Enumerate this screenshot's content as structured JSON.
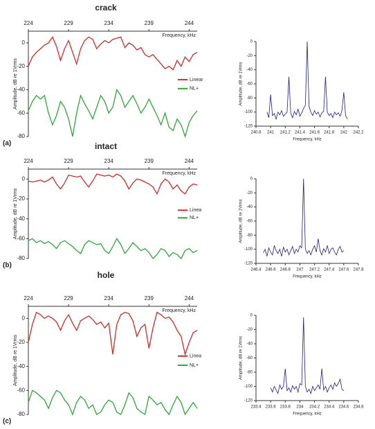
{
  "chart_data": [
    {
      "type": "line",
      "title": "crack",
      "panel": "(a)",
      "xlabel": "Frequency, kHz",
      "ylabel": "Amplitude, dB re 1Vrms",
      "xaxis": "top",
      "legend": "right",
      "x": [
        224,
        224.5,
        225,
        225.5,
        226,
        226.5,
        227,
        227.5,
        228,
        228.5,
        229,
        229.5,
        230,
        230.5,
        231,
        231.5,
        232,
        232.5,
        233,
        233.5,
        234,
        234.5,
        235,
        235.5,
        236,
        236.5,
        237,
        237.5,
        238,
        238.5,
        239,
        239.5,
        240,
        240.5,
        241,
        241.5,
        242,
        242.5,
        243,
        243.5,
        244,
        244.5,
        245
      ],
      "series": [
        {
          "name": "Linear",
          "color": "#d42a2a",
          "values": [
            -20,
            -12,
            -8,
            -5,
            -2,
            0,
            5,
            -3,
            -15,
            -5,
            2,
            -8,
            -18,
            -5,
            2,
            5,
            3,
            -5,
            -1,
            2,
            0,
            3,
            4,
            5,
            -4,
            0,
            -2,
            -6,
            -4,
            -10,
            -12,
            -10,
            -14,
            -18,
            -22,
            -20,
            -23,
            -15,
            -20,
            -12,
            -16,
            -10,
            -8
          ]
        },
        {
          "name": "NL+",
          "color": "#2ea83a",
          "values": [
            -58,
            -50,
            -45,
            -48,
            -45,
            -60,
            -70,
            -62,
            -50,
            -55,
            -65,
            -80,
            -60,
            -45,
            -52,
            -58,
            -65,
            -55,
            -45,
            -50,
            -60,
            -55,
            -40,
            -45,
            -55,
            -50,
            -45,
            -52,
            -60,
            -55,
            -48,
            -55,
            -62,
            -70,
            -60,
            -72,
            -75,
            -65,
            -70,
            -80,
            -68,
            -62,
            -58
          ]
        }
      ],
      "xlim": [
        224,
        245
      ],
      "ylim": [
        -80,
        10
      ],
      "xticks": [
        224,
        229,
        234,
        239,
        244
      ],
      "yticks": [
        0,
        -20,
        -40,
        -60,
        -80
      ]
    },
    {
      "type": "line",
      "xlabel": "Frequency, kHz",
      "ylabel": "Amplitude, dB re 1Vrms",
      "xaxis": "bottom",
      "x": [
        240.95,
        240.975,
        241,
        241.025,
        241.05,
        241.075,
        241.1,
        241.125,
        241.15,
        241.175,
        241.2,
        241.225,
        241.25,
        241.275,
        241.3,
        241.325,
        241.35,
        241.375,
        241.4,
        241.425,
        241.45,
        241.475,
        241.5,
        241.525,
        241.55,
        241.575,
        241.6,
        241.625,
        241.65,
        241.675,
        241.7,
        241.725,
        241.75,
        241.775,
        241.8,
        241.825,
        241.85,
        241.875,
        241.9,
        241.925,
        241.95,
        241.975,
        242,
        242.025,
        242.05
      ],
      "series": [
        {
          "color": "#1c1c8c",
          "values": [
            -100,
            -108,
            -75,
            -105,
            -102,
            -110,
            -100,
            -104,
            -98,
            -106,
            -103,
            -100,
            -50,
            -102,
            -108,
            -99,
            -104,
            -96,
            -106,
            -101,
            -95,
            -90,
            0,
            -92,
            -100,
            -105,
            -98,
            -103,
            -100,
            -107,
            -101,
            -99,
            -50,
            -100,
            -105,
            -102,
            -108,
            -100,
            -104,
            -101,
            -106,
            -98,
            -72,
            -105,
            -110
          ]
        }
      ],
      "xlim": [
        240.8,
        242.2
      ],
      "ylim": [
        -120,
        0
      ],
      "xticks": [
        240.8,
        241,
        241.2,
        241.4,
        241.6,
        241.8,
        242,
        242.2
      ],
      "yticks": [
        0,
        -20,
        -40,
        -60,
        -80,
        -100,
        -120
      ]
    },
    {
      "type": "line",
      "title": "intact",
      "panel": "(b)",
      "xlabel": "Frequency, kHz",
      "ylabel": "Amplitude, dB re 1Vrms",
      "xaxis": "top",
      "legend": "right",
      "x": [
        224,
        224.5,
        225,
        225.5,
        226,
        226.5,
        227,
        227.5,
        228,
        228.5,
        229,
        229.5,
        230,
        230.5,
        231,
        231.5,
        232,
        232.5,
        233,
        233.5,
        234,
        234.5,
        235,
        235.5,
        236,
        236.5,
        237,
        237.5,
        238,
        238.5,
        239,
        239.5,
        240,
        240.5,
        241,
        241.5,
        242,
        242.5,
        243,
        243.5,
        244,
        244.5,
        245
      ],
      "series": [
        {
          "name": "Linea",
          "color": "#d42a2a",
          "values": [
            -2,
            -3,
            -2,
            -1,
            -3,
            -1,
            2,
            -5,
            -10,
            -4,
            4,
            3,
            2,
            3,
            -3,
            -8,
            -2,
            5,
            4,
            3,
            4,
            2,
            5,
            3,
            -2,
            -10,
            -4,
            0,
            -1,
            -3,
            -5,
            -8,
            -15,
            -5,
            0,
            -3,
            -10,
            -6,
            -12,
            -15,
            -8,
            -5,
            -6
          ]
        },
        {
          "name": "NL+",
          "color": "#2ea83a",
          "values": [
            -62,
            -60,
            -64,
            -62,
            -65,
            -63,
            -66,
            -70,
            -64,
            -62,
            -65,
            -68,
            -72,
            -75,
            -66,
            -62,
            -64,
            -66,
            -65,
            -72,
            -75,
            -68,
            -60,
            -66,
            -75,
            -70,
            -64,
            -68,
            -72,
            -70,
            -74,
            -80,
            -76,
            -70,
            -72,
            -78,
            -74,
            -76,
            -80,
            -72,
            -70,
            -74,
            -72
          ]
        }
      ],
      "xlim": [
        224,
        245
      ],
      "ylim": [
        -80,
        10
      ],
      "xticks": [
        224,
        229,
        234,
        239,
        244
      ],
      "yticks": [
        0,
        -20,
        -40,
        -60,
        -80
      ]
    },
    {
      "type": "line",
      "xlabel": "Frequency, kHz",
      "ylabel": "Amplitude, dB re 1Vrms",
      "xaxis": "bottom",
      "x": [
        246.5,
        246.525,
        246.55,
        246.575,
        246.6,
        246.625,
        246.65,
        246.675,
        246.7,
        246.725,
        246.75,
        246.775,
        246.8,
        246.825,
        246.85,
        246.875,
        246.9,
        246.925,
        246.95,
        246.975,
        247,
        247.025,
        247.05,
        247.075,
        247.1,
        247.125,
        247.15,
        247.175,
        247.2,
        247.225,
        247.25,
        247.275,
        247.3,
        247.325,
        247.35,
        247.375,
        247.4,
        247.425,
        247.45,
        247.475,
        247.5,
        247.525,
        247.55,
        247.575,
        247.6
      ],
      "series": [
        {
          "color": "#1c1c8c",
          "values": [
            -105,
            -100,
            -110,
            -98,
            -104,
            -108,
            -95,
            -102,
            -106,
            -100,
            -110,
            -97,
            -104,
            -100,
            -108,
            -102,
            -96,
            -106,
            -100,
            -104,
            -95,
            -98,
            0,
            -100,
            -106,
            -102,
            -108,
            -100,
            -95,
            -104,
            -85,
            -102,
            -108,
            -99,
            -104,
            -95,
            -106,
            -100,
            -98,
            -104,
            -108,
            -100,
            -96,
            -104,
            -102
          ]
        }
      ],
      "xlim": [
        246.4,
        247.8
      ],
      "ylim": [
        -120,
        0
      ],
      "xticks": [
        246.4,
        246.6,
        246.8,
        247,
        247.2,
        247.4,
        247.6,
        247.8
      ],
      "yticks": [
        0,
        -20,
        -40,
        -60,
        -80,
        -100,
        -120
      ]
    },
    {
      "type": "line",
      "title": "hole",
      "panel": "(c)",
      "xlabel": "Frequency, kHz",
      "ylabel": "Amplitude, dB re 1Vrms",
      "xaxis": "top",
      "legend": "right",
      "x": [
        224,
        224.5,
        225,
        225.5,
        226,
        226.5,
        227,
        227.5,
        228,
        228.5,
        229,
        229.5,
        230,
        230.5,
        231,
        231.5,
        232,
        232.5,
        233,
        233.5,
        234,
        234.5,
        235,
        235.5,
        236,
        236.5,
        237,
        237.5,
        238,
        238.5,
        239,
        239.5,
        240,
        240.5,
        241,
        241.5,
        242,
        242.5,
        243,
        243.5,
        244,
        244.5,
        245
      ],
      "series": [
        {
          "name": "Linea",
          "color": "#d42a2a",
          "values": [
            -20,
            -5,
            5,
            3,
            0,
            2,
            0,
            -3,
            -10,
            -2,
            3,
            -4,
            -10,
            -2,
            0,
            2,
            -1,
            -5,
            -3,
            -8,
            -4,
            -30,
            -5,
            3,
            5,
            4,
            -2,
            -15,
            -8,
            -5,
            -25,
            -8,
            5,
            3,
            0,
            1,
            -3,
            -10,
            -15,
            -30,
            -20,
            -12,
            -10
          ]
        },
        {
          "name": "NL+",
          "color": "#2ea83a",
          "values": [
            -70,
            -60,
            -62,
            -65,
            -68,
            -75,
            -66,
            -60,
            -62,
            -68,
            -72,
            -80,
            -70,
            -65,
            -68,
            -75,
            -72,
            -80,
            -78,
            -72,
            -68,
            -70,
            -78,
            -80,
            -72,
            -62,
            -66,
            -75,
            -78,
            -80,
            -65,
            -68,
            -72,
            -70,
            -76,
            -80,
            -72,
            -65,
            -70,
            -80,
            -75,
            -70,
            -75
          ]
        }
      ],
      "xlim": [
        224,
        245
      ],
      "ylim": [
        -80,
        10
      ],
      "xticks": [
        224,
        229,
        234,
        239,
        244
      ],
      "yticks": [
        0,
        -20,
        -40,
        -60,
        -80
      ]
    },
    {
      "type": "line",
      "xlabel": "Frequency, kHz",
      "ylabel": "Amplitude, dB re 1Vrms",
      "xaxis": "bottom",
      "x": [
        233.6,
        233.625,
        233.65,
        233.675,
        233.7,
        233.725,
        233.75,
        233.775,
        233.8,
        233.825,
        233.85,
        233.875,
        233.9,
        233.925,
        233.95,
        233.975,
        234,
        234.025,
        234.05,
        234.075,
        234.1,
        234.125,
        234.15,
        234.175,
        234.2,
        234.225,
        234.25,
        234.275,
        234.3,
        234.325,
        234.35,
        234.375,
        234.4,
        234.425,
        234.45,
        234.475,
        234.5,
        234.525,
        234.55,
        234.575,
        234.6
      ],
      "series": [
        {
          "color": "#1c1c8c",
          "values": [
            -102,
            -108,
            -100,
            -105,
            -110,
            -98,
            -104,
            -100,
            -75,
            -106,
            -102,
            -108,
            -99,
            -104,
            -100,
            -108,
            -96,
            -98,
            -3,
            -100,
            -108,
            -104,
            -110,
            -100,
            -106,
            -102,
            -98,
            -104,
            -75,
            -105,
            -100,
            -108,
            -102,
            -98,
            -104,
            -95,
            -100,
            -96,
            -90,
            -104,
            -106
          ]
        }
      ],
      "xlim": [
        233.4,
        234.8
      ],
      "ylim": [
        -120,
        0
      ],
      "xticks": [
        233.4,
        233.6,
        233.8,
        234,
        234.2,
        234.4,
        234.6,
        234.8
      ],
      "yticks": [
        0,
        -20,
        -40,
        -60,
        -80,
        -100,
        -120
      ]
    }
  ]
}
